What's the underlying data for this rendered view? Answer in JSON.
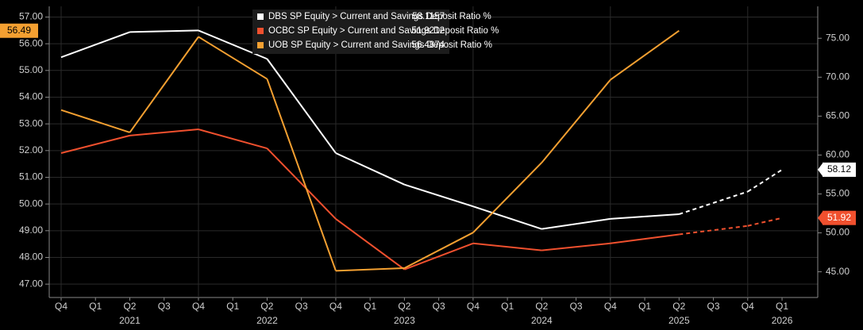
{
  "chart_data": {
    "type": "line",
    "categories": [
      "Q4",
      "Q1",
      "Q2",
      "Q3",
      "Q4",
      "Q1",
      "Q2",
      "Q3",
      "Q4",
      "Q1",
      "Q2",
      "Q3",
      "Q4",
      "Q1",
      "Q2",
      "Q3",
      "Q4",
      "Q1",
      "Q2",
      "Q3",
      "Q4",
      "Q1"
    ],
    "years": [
      null,
      null,
      "2021",
      null,
      null,
      null,
      "2022",
      null,
      null,
      null,
      "2023",
      null,
      null,
      null,
      "2024",
      null,
      null,
      null,
      "2025",
      null,
      null,
      "2026"
    ],
    "ylim": [
      46.5,
      57.4
    ],
    "yticks": [
      {
        "value": 47,
        "label": "47.00"
      },
      {
        "value": 48,
        "label": "48.00"
      },
      {
        "value": 49,
        "label": "49.00"
      },
      {
        "value": 50,
        "label": "50.00"
      },
      {
        "value": 51,
        "label": "51.00"
      },
      {
        "value": 52,
        "label": "52.00"
      },
      {
        "value": 53,
        "label": "53.00"
      },
      {
        "value": 54,
        "label": "54.00"
      },
      {
        "value": 55,
        "label": "55.00"
      },
      {
        "value": 56,
        "label": "56.00"
      },
      {
        "value": 57,
        "label": "57.00"
      }
    ],
    "y2lim": [
      41.7,
      79.1
    ],
    "y2ticks": [
      {
        "value": 45,
        "label": "45.00"
      },
      {
        "value": 50,
        "label": "50.00"
      },
      {
        "value": 55,
        "label": "55.00"
      },
      {
        "value": 60,
        "label": "60.00"
      },
      {
        "value": 65,
        "label": "65.00"
      },
      {
        "value": 70,
        "label": "70.00"
      },
      {
        "value": 75,
        "label": "75.00"
      }
    ],
    "grid": true,
    "series": [
      {
        "name": "DBS SP Equity > Current and Savings Deposit Ratio %",
        "color": "#ffffff",
        "axis": "y2",
        "end_label": "58.12",
        "end_text_color": "#000000",
        "values": [
          72.56,
          null,
          75.8,
          null,
          76.0,
          null,
          72.35,
          null,
          60.25,
          null,
          56.2,
          null,
          53.4,
          null,
          50.5,
          null,
          51.8,
          null,
          52.4,
          null,
          null,
          null
        ],
        "estimates": [
          null,
          null,
          null,
          null,
          null,
          null,
          null,
          null,
          null,
          null,
          null,
          null,
          null,
          null,
          null,
          null,
          null,
          null,
          null,
          null,
          55.3,
          58.1157
        ]
      },
      {
        "name": "OCBC SP Equity > Current and Savings Deposit Ratio %",
        "color": "#f0502e",
        "axis": "y2",
        "end_label": "51.92",
        "end_text_color": "#ffffff",
        "values": [
          60.25,
          null,
          62.5,
          null,
          63.3,
          null,
          60.85,
          null,
          51.8,
          null,
          45.3,
          null,
          48.65,
          null,
          47.75,
          null,
          48.65,
          null,
          49.8,
          null,
          null,
          null
        ],
        "estimates": [
          null,
          null,
          null,
          null,
          null,
          null,
          null,
          null,
          null,
          null,
          null,
          null,
          null,
          null,
          null,
          null,
          null,
          null,
          null,
          null,
          50.9,
          51.9212
        ]
      },
      {
        "name": "UOB SP Equity > Current and Savings Deposit Ratio %",
        "color": "#f4a031",
        "axis": "y",
        "end_label": "56.49",
        "end_text_color": "#000000",
        "values": [
          53.52,
          null,
          52.68,
          null,
          56.26,
          null,
          54.68,
          null,
          47.5,
          null,
          47.6,
          null,
          48.93,
          null,
          51.55,
          null,
          54.65,
          null,
          56.4874,
          null,
          null,
          null
        ]
      }
    ]
  }
}
